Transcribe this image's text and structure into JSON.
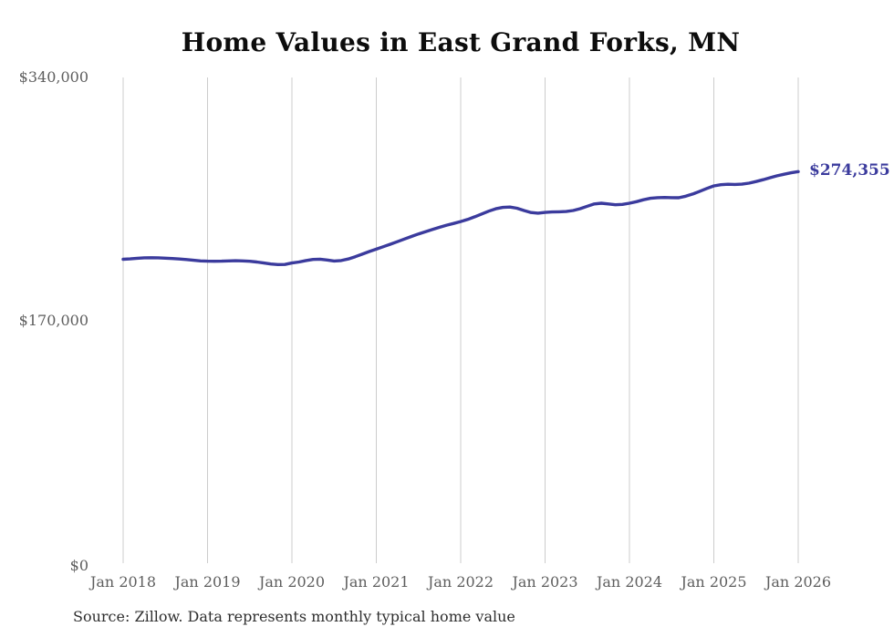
{
  "chart_data": {
    "type": "line",
    "title": "Home Values in East Grand Forks, MN",
    "source_note": "Source: Zillow. Data represents monthly typical home value",
    "end_label": "$274,355",
    "latest_value": 274355,
    "xlabel": "",
    "ylabel": "",
    "ylim": [
      0,
      340000
    ],
    "grid": "vertical-only",
    "legend": "none",
    "line_color": "#3b3b9d",
    "gridline_color": "#cccccc",
    "axis_label_color": "#5e5e5e",
    "y_ticks": [
      {
        "value": 0,
        "label": "$0"
      },
      {
        "value": 170000,
        "label": "$170,000"
      },
      {
        "value": 340000,
        "label": "$340,000"
      }
    ],
    "x_ticks": [
      "Jan 2018",
      "Jan 2019",
      "Jan 2020",
      "Jan 2021",
      "Jan 2022",
      "Jan 2023",
      "Jan 2024",
      "Jan 2025",
      "Jan 2026"
    ],
    "series": [
      {
        "name": "Monthly typical home value",
        "x": [
          "2018-01",
          "2018-02",
          "2018-03",
          "2018-04",
          "2018-05",
          "2018-06",
          "2018-07",
          "2018-08",
          "2018-09",
          "2018-10",
          "2018-11",
          "2018-12",
          "2019-01",
          "2019-02",
          "2019-03",
          "2019-04",
          "2019-05",
          "2019-06",
          "2019-07",
          "2019-08",
          "2019-09",
          "2019-10",
          "2019-11",
          "2019-12",
          "2020-01",
          "2020-02",
          "2020-03",
          "2020-04",
          "2020-05",
          "2020-06",
          "2020-07",
          "2020-08",
          "2020-09",
          "2020-10",
          "2020-11",
          "2020-12",
          "2021-01",
          "2021-02",
          "2021-03",
          "2021-04",
          "2021-05",
          "2021-06",
          "2021-07",
          "2021-08",
          "2021-09",
          "2021-10",
          "2021-11",
          "2021-12",
          "2022-01",
          "2022-02",
          "2022-03",
          "2022-04",
          "2022-05",
          "2022-06",
          "2022-07",
          "2022-08",
          "2022-09",
          "2022-10",
          "2022-11",
          "2022-12",
          "2023-01",
          "2023-02",
          "2023-03",
          "2023-04",
          "2023-05",
          "2023-06",
          "2023-07",
          "2023-08",
          "2023-09",
          "2023-10",
          "2023-11",
          "2023-12",
          "2024-01",
          "2024-02",
          "2024-03",
          "2024-04",
          "2024-05",
          "2024-06",
          "2024-07",
          "2024-08",
          "2024-09",
          "2024-10",
          "2024-11",
          "2024-12",
          "2025-01",
          "2025-02",
          "2025-03",
          "2025-04",
          "2025-05",
          "2025-06",
          "2025-07",
          "2025-08",
          "2025-09",
          "2025-10",
          "2025-11",
          "2025-12",
          "2026-01"
        ],
        "values": [
          213200,
          213500,
          213900,
          214200,
          214300,
          214200,
          214000,
          213700,
          213400,
          213000,
          212500,
          212100,
          211900,
          211800,
          211900,
          212100,
          212200,
          212100,
          211800,
          211300,
          210600,
          209900,
          209500,
          209600,
          210600,
          211300,
          212300,
          213100,
          213300,
          212700,
          212000,
          212300,
          213400,
          215000,
          216800,
          218600,
          220300,
          222000,
          223700,
          225500,
          227300,
          229100,
          230900,
          232500,
          234000,
          235500,
          237000,
          238200,
          239500,
          241000,
          242800,
          244800,
          246800,
          248400,
          249400,
          249600,
          248800,
          247200,
          245800,
          245400,
          245900,
          246200,
          246300,
          246500,
          247200,
          248500,
          250200,
          251800,
          252300,
          251800,
          251200,
          251500,
          252300,
          253400,
          254700,
          255700,
          256200,
          256300,
          256200,
          256100,
          257200,
          258700,
          260600,
          262600,
          264400,
          265200,
          265500,
          265400,
          265600,
          266300,
          267400,
          268700,
          270100,
          271400,
          272500,
          273500,
          274355
        ]
      }
    ]
  }
}
